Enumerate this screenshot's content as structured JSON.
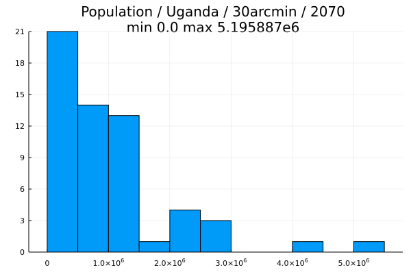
{
  "chart_data": {
    "type": "bar",
    "title": "Population / Uganda / 30arcmin / 2070",
    "subtitle": "min 0.0  max 5.195887e6",
    "xlabel": "",
    "ylabel": "",
    "bin_width": 500000,
    "bins": [
      {
        "x0": 0,
        "x1": 500000,
        "count": 21
      },
      {
        "x0": 500000,
        "x1": 1000000,
        "count": 14
      },
      {
        "x0": 1000000,
        "x1": 1500000,
        "count": 13
      },
      {
        "x0": 1500000,
        "x1": 2000000,
        "count": 1
      },
      {
        "x0": 2000000,
        "x1": 2500000,
        "count": 4
      },
      {
        "x0": 2500000,
        "x1": 3000000,
        "count": 3
      },
      {
        "x0": 3000000,
        "x1": 3500000,
        "count": 0
      },
      {
        "x0": 3500000,
        "x1": 4000000,
        "count": 0
      },
      {
        "x0": 4000000,
        "x1": 4500000,
        "count": 1
      },
      {
        "x0": 4500000,
        "x1": 5000000,
        "count": 0
      },
      {
        "x0": 5000000,
        "x1": 5500000,
        "count": 1
      }
    ],
    "xlim": [
      -300000,
      5800000
    ],
    "ylim": [
      0,
      21
    ],
    "yticks": [
      0,
      3,
      6,
      9,
      12,
      15,
      18,
      21
    ],
    "xticks": [
      {
        "value": 0,
        "label": "0"
      },
      {
        "value": 1000000,
        "label": "1.0×10",
        "exp": "6"
      },
      {
        "value": 2000000,
        "label": "2.0×10",
        "exp": "6"
      },
      {
        "value": 3000000,
        "label": "3.0×10",
        "exp": "6"
      },
      {
        "value": 4000000,
        "label": "4.0×10",
        "exp": "6"
      },
      {
        "value": 5000000,
        "label": "5.0×10",
        "exp": "6"
      }
    ],
    "grid": true,
    "legend": "none",
    "colors": {
      "bar_fill": "#009af9",
      "bar_stroke": "#000000",
      "grid": "#e5e5e5",
      "axis": "#000000"
    }
  }
}
